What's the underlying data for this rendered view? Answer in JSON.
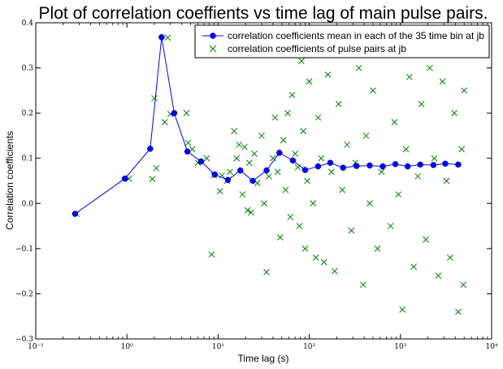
{
  "chart_data": {
    "type": "scatter",
    "title": "Plot of correlation coeffients vs time lag of main pulse pairs.",
    "xlabel": "Time lag (s)",
    "ylabel": "Correlation coefficients",
    "xscale": "log",
    "xlim": [
      0.1,
      10000
    ],
    "ylim": [
      -0.3,
      0.4
    ],
    "x_ticks": [
      0.1,
      1,
      10,
      100,
      1000,
      10000
    ],
    "x_tick_labels": [
      "10⁻¹",
      "10⁰",
      "10¹",
      "10²",
      "10³",
      "10⁴"
    ],
    "y_ticks": [
      -0.3,
      -0.2,
      -0.1,
      0.0,
      0.1,
      0.2,
      0.3,
      0.4
    ],
    "y_tick_labels": [
      "−0.3",
      "−0.2",
      "−0.1",
      "0.0",
      "0.1",
      "0.2",
      "0.3",
      "0.4"
    ],
    "grid": false,
    "legend_position": "top-right",
    "series": [
      {
        "name": "correlation coefficients mean in each of the 35 time bin at jb",
        "marker": "circle",
        "line": true,
        "color": "#0000ff",
        "points": [
          [
            0.27,
            -0.023
          ],
          [
            0.95,
            0.055
          ],
          [
            1.8,
            0.121
          ],
          [
            2.4,
            0.368
          ],
          [
            3.3,
            0.2
          ],
          [
            4.6,
            0.115
          ],
          [
            6.5,
            0.093
          ],
          [
            9.2,
            0.064
          ],
          [
            12.8,
            0.052
          ],
          [
            17.5,
            0.073
          ],
          [
            24,
            0.05
          ],
          [
            34,
            0.073
          ],
          [
            47,
            0.112
          ],
          [
            66,
            0.095
          ],
          [
            90,
            0.074
          ],
          [
            125,
            0.082
          ],
          [
            170,
            0.09
          ],
          [
            235,
            0.079
          ],
          [
            330,
            0.083
          ],
          [
            460,
            0.084
          ],
          [
            640,
            0.082
          ],
          [
            880,
            0.087
          ],
          [
            1200,
            0.082
          ],
          [
            1650,
            0.086
          ],
          [
            2300,
            0.085
          ],
          [
            3100,
            0.088
          ],
          [
            4300,
            0.086
          ]
        ]
      },
      {
        "name": "correlation coefficients of pulse pairs at jb",
        "marker": "x",
        "line": false,
        "color": "#008000",
        "points": [
          [
            0.28,
            -0.023
          ],
          [
            1.05,
            0.055
          ],
          [
            1.9,
            0.054
          ],
          [
            2.0,
            0.233
          ],
          [
            2.1,
            0.078
          ],
          [
            2.6,
            0.18
          ],
          [
            2.8,
            0.367
          ],
          [
            3.0,
            0.198
          ],
          [
            4.5,
            0.2
          ],
          [
            4.7,
            0.134
          ],
          [
            5.2,
            0.12
          ],
          [
            6.0,
            0.09
          ],
          [
            7.5,
            0.1
          ],
          [
            8.5,
            -0.113
          ],
          [
            9.0,
            0.062
          ],
          [
            10.5,
            0.027
          ],
          [
            11.0,
            0.062
          ],
          [
            12.5,
            0.05
          ],
          [
            13.5,
            0.07
          ],
          [
            15.0,
            0.16
          ],
          [
            16.0,
            0.1
          ],
          [
            17.0,
            0.13
          ],
          [
            18.5,
            0.02
          ],
          [
            19.5,
            0.125
          ],
          [
            21.0,
            -0.015
          ],
          [
            22.0,
            0.09
          ],
          [
            23.0,
            -0.02
          ],
          [
            25.0,
            0.11
          ],
          [
            27.0,
            0.045
          ],
          [
            30.0,
            0.15
          ],
          [
            32.0,
            0.0
          ],
          [
            34.0,
            -0.152
          ],
          [
            36.0,
            0.06
          ],
          [
            40.0,
            0.1
          ],
          [
            42.0,
            0.19
          ],
          [
            45.0,
            0.07
          ],
          [
            48.0,
            -0.075
          ],
          [
            52.0,
            0.14
          ],
          [
            55.0,
            0.03
          ],
          [
            58.0,
            0.2
          ],
          [
            62.0,
            -0.03
          ],
          [
            65.0,
            0.24
          ],
          [
            70.0,
            0.11
          ],
          [
            75.0,
            0.08
          ],
          [
            78.0,
            -0.05
          ],
          [
            82.0,
            0.315
          ],
          [
            86.0,
            0.16
          ],
          [
            90.0,
            -0.1
          ],
          [
            95.0,
            0.05
          ],
          [
            100.0,
            0.27
          ],
          [
            110.0,
            0.0
          ],
          [
            118.0,
            -0.12
          ],
          [
            125.0,
            0.19
          ],
          [
            135.0,
            0.1
          ],
          [
            145.0,
            -0.13
          ],
          [
            160.0,
            0.285
          ],
          [
            175.0,
            0.07
          ],
          [
            190.0,
            -0.15
          ],
          [
            210.0,
            0.22
          ],
          [
            230.0,
            0.03
          ],
          [
            260.0,
            0.13
          ],
          [
            290.0,
            -0.06
          ],
          [
            320.0,
            0.09
          ],
          [
            350.0,
            0.3
          ],
          [
            390.0,
            -0.18
          ],
          [
            420.0,
            0.15
          ],
          [
            460.0,
            0.0
          ],
          [
            500.0,
            0.25
          ],
          [
            560.0,
            -0.1
          ],
          [
            620.0,
            0.07
          ],
          [
            700.0,
            0.33
          ],
          [
            780.0,
            -0.05
          ],
          [
            860.0,
            0.18
          ],
          [
            950.0,
            0.02
          ],
          [
            1050.0,
            -0.235
          ],
          [
            1150.0,
            0.12
          ],
          [
            1250.0,
            0.28
          ],
          [
            1400.0,
            -0.14
          ],
          [
            1550.0,
            0.06
          ],
          [
            1700.0,
            0.22
          ],
          [
            1900.0,
            -0.08
          ],
          [
            2100.0,
            0.3
          ],
          [
            2350.0,
            0.1
          ],
          [
            2600.0,
            -0.16
          ],
          [
            2900.0,
            0.27
          ],
          [
            3200.0,
            0.05
          ],
          [
            3500.0,
            -0.12
          ],
          [
            3900.0,
            0.2
          ],
          [
            4300.0,
            -0.24
          ],
          [
            4700.0,
            0.12
          ],
          [
            4900.0,
            -0.18
          ],
          [
            5000.0,
            0.25
          ]
        ]
      }
    ]
  }
}
